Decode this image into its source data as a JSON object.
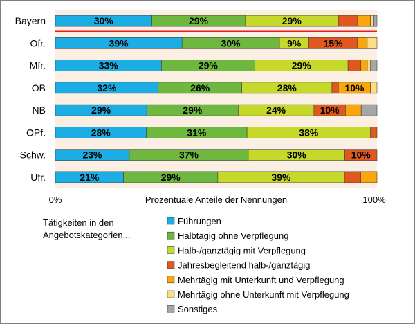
{
  "chart_data": {
    "type": "bar",
    "orientation": "horizontal",
    "stacked": "percent",
    "categories": [
      "Bayern",
      "Ofr.",
      "Mfr.",
      "OB",
      "NB",
      "OPf.",
      "Schw.",
      "Ufr."
    ],
    "series": [
      {
        "name": "Führungen",
        "color": "#1cade4",
        "values": [
          30,
          39,
          33,
          32,
          29,
          28,
          23,
          21
        ],
        "labels": [
          "30%",
          "39%",
          "33%",
          "32%",
          "29%",
          "28%",
          "23%",
          "21%"
        ]
      },
      {
        "name": "Halbtägig ohne Verpflegung",
        "color": "#6fb83f",
        "values": [
          29,
          30,
          29,
          26,
          29,
          31,
          37,
          29
        ],
        "labels": [
          "29%",
          "30%",
          "29%",
          "26%",
          "29%",
          "31%",
          "37%",
          "29%"
        ]
      },
      {
        "name": "Halb-/ganztägig mit Verpflegung",
        "color": "#c6d92b",
        "values": [
          29,
          9,
          29,
          28,
          24,
          38,
          30,
          39
        ],
        "labels": [
          "29%",
          "9%",
          "29%",
          "28%",
          "24%",
          "38%",
          "30%",
          "39%"
        ]
      },
      {
        "name": "Jahresbegleitend halb-/ganztägig",
        "color": "#e0581d",
        "values": [
          6,
          15,
          4,
          2,
          10,
          2,
          10,
          5
        ],
        "labels": [
          "",
          "15%",
          "",
          "",
          "10%",
          "",
          "10%",
          ""
        ]
      },
      {
        "name": "Mehrtägig mit Unterkunft und Verpflegung",
        "color": "#f9a70a",
        "values": [
          4,
          3,
          2,
          10,
          5,
          0,
          0,
          5
        ],
        "labels": [
          "",
          "",
          "",
          "10%",
          "",
          "",
          "",
          ""
        ]
      },
      {
        "name": "Mehrtägig ohne Unterkunft mit Verpflegung",
        "color": "#fddc84",
        "values": [
          1,
          3,
          1,
          2,
          0,
          0,
          0,
          0
        ],
        "labels": [
          "",
          "",
          "",
          "",
          "",
          "",
          "",
          ""
        ]
      },
      {
        "name": "Sonstiges",
        "color": "#a6a6a6",
        "values": [
          1,
          0,
          2,
          0,
          5,
          0,
          0,
          0
        ],
        "labels": [
          "",
          "",
          "",
          "",
          "",
          "",
          "",
          ""
        ]
      }
    ],
    "xlabel": "Prozentuale Anteile der Nennungen",
    "xlim": [
      0,
      100
    ],
    "x_tick_labels": [
      "0%",
      "100%"
    ],
    "legend_title": "Tätigkeiten in den Angebotskategorien...",
    "legend_position": "bottom",
    "plot_background": "#fbeee2",
    "separator_color": "#e41e1e"
  }
}
